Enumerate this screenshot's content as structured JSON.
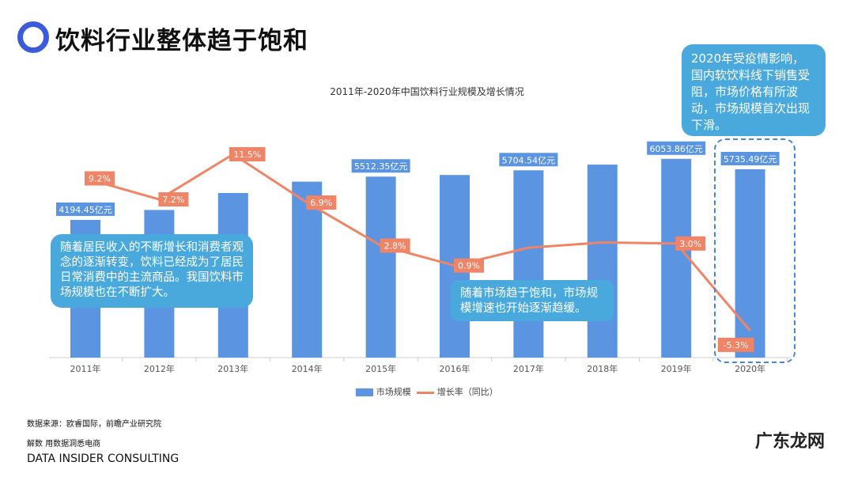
{
  "header": {
    "title": "饮料行业整体趋于饱和"
  },
  "callouts": {
    "left": "随着居民收入的不断增长和消费者观念的逐渐转变，饮料已经成为了居民日常消费中的主流商品。我国饮料市场规模也在不断扩大。",
    "middle": "随着市场趋于饱和，市场规模增速也开始逐渐趋缓。",
    "right": "2020年受疫情影响，国内软饮料线下销售受阻，市场价格有所波动，市场规模首次出现下滑。"
  },
  "chart_data": {
    "type": "bar+line",
    "title": "2011年-2020年中国饮料行业规模及增长情况",
    "categories": [
      "2011年",
      "2012年",
      "2013年",
      "2014年",
      "2015年",
      "2016年",
      "2017年",
      "2018年",
      "2019年",
      "2020年"
    ],
    "series": [
      {
        "name": "市场规模",
        "type": "bar",
        "unit": "亿元",
        "color": "#5b95e2",
        "values": [
          4194.45,
          4496,
          5013,
          5359,
          5512.35,
          5562,
          5704.54,
          5878,
          6053.86,
          5735.49
        ],
        "labels": [
          "4194.45亿元",
          null,
          null,
          null,
          "5512.35亿元",
          null,
          "5704.54亿元",
          null,
          "6053.86亿元",
          "5735.49亿元"
        ]
      },
      {
        "name": "增长率（同比）",
        "type": "line",
        "unit": "%",
        "color": "#ef8466",
        "values": [
          9.2,
          7.2,
          11.5,
          6.9,
          2.8,
          0.9,
          2.6,
          3.1,
          3.0,
          -5.3
        ],
        "labels": [
          "9.2%",
          "7.2%",
          "11.5%",
          "6.9%",
          "2.8%",
          "0.9%",
          null,
          null,
          "3.0%",
          "-5.3%"
        ]
      }
    ],
    "legend": "bottom",
    "grid": false
  },
  "footer": {
    "source": "数据来源：欧睿国际，前瞻产业研究院",
    "slogan": "解数 用数据洞悉电商",
    "company": "DATA INSIDER CONSULTING",
    "watermark": "广东龙网"
  }
}
